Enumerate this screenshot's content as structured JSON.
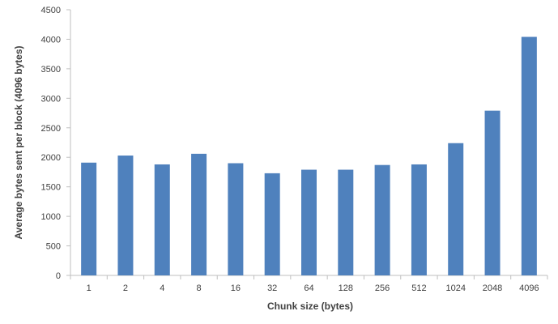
{
  "chart_data": {
    "type": "bar",
    "title": "",
    "xlabel": "Chunk size (bytes)",
    "ylabel": "Average bytes sent per block  (4096 bytes)",
    "categories": [
      "1",
      "2",
      "4",
      "8",
      "16",
      "32",
      "64",
      "128",
      "256",
      "512",
      "1024",
      "2048",
      "4096"
    ],
    "values": [
      1910,
      2030,
      1880,
      2060,
      1900,
      1730,
      1790,
      1790,
      1870,
      1880,
      2240,
      2790,
      4040
    ],
    "ylim": [
      0,
      4500
    ],
    "yticks": [
      "0",
      "500",
      "1000",
      "1500",
      "2000",
      "2500",
      "3000",
      "3500",
      "4000",
      "4500"
    ],
    "grid": false,
    "legend": "none",
    "bar_color": "#4f81bd",
    "axis_color": "#bfbfbf"
  }
}
